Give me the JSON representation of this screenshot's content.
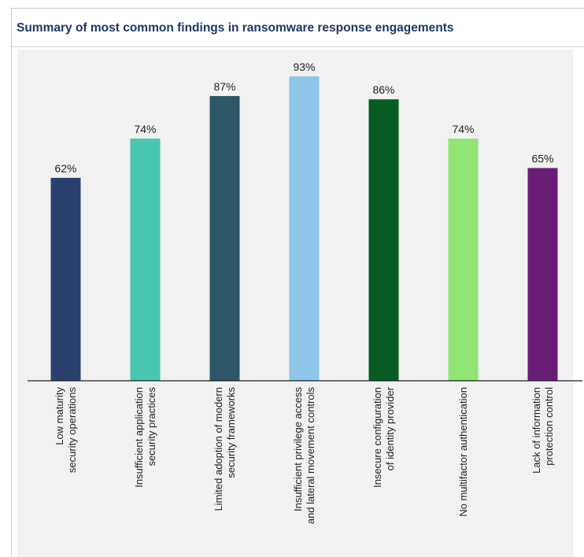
{
  "chart_data": {
    "type": "bar",
    "title": "Summary of most common findings in ransomware response engagements",
    "xlabel": "",
    "ylabel": "",
    "ylim": [
      0,
      100
    ],
    "grid": false,
    "categories": [
      [
        "Low maturity",
        "security operations"
      ],
      [
        "Insufficient application",
        "security practices"
      ],
      [
        "Limited adoption of modern",
        "security frameworks"
      ],
      [
        "Insufficient privilege access",
        "and lateral movement controls"
      ],
      [
        "Insecure configuration",
        "of identity provider"
      ],
      [
        "No multifactor authentication"
      ],
      [
        "Lack of information",
        "protection control"
      ]
    ],
    "values": [
      62,
      74,
      87,
      93,
      86,
      74,
      65
    ],
    "value_labels": [
      "62%",
      "74%",
      "87%",
      "93%",
      "86%",
      "74%",
      "65%"
    ],
    "colors": [
      "#2a4170",
      "#49c6b1",
      "#2d5766",
      "#8ec7ea",
      "#075c23",
      "#90e575",
      "#6a1d76"
    ]
  }
}
